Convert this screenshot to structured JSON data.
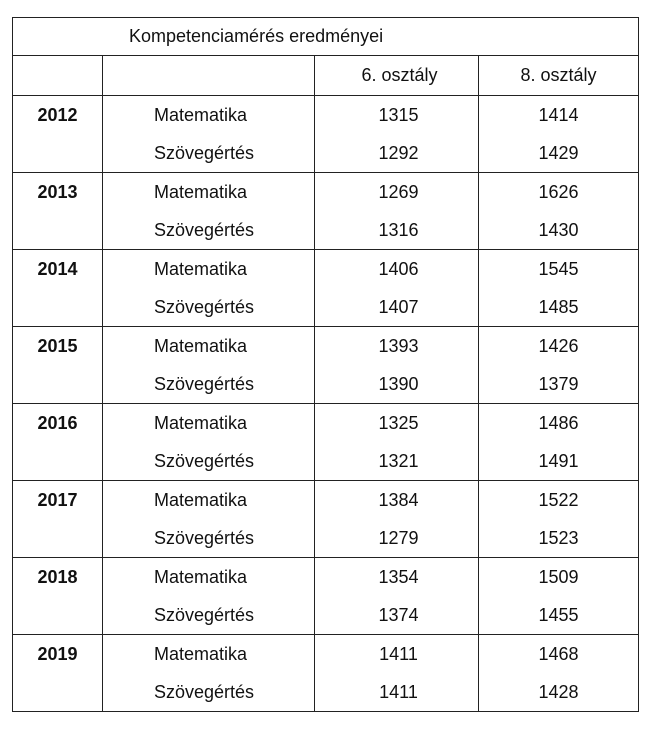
{
  "title": "Kompetenciamérés eredményei",
  "headers": {
    "year": "",
    "subject": "",
    "grade6": "6. osztály",
    "grade8": "8. osztály"
  },
  "rows": [
    {
      "year": "2012",
      "subject": "Matematika",
      "grade6": "1315",
      "grade8": "1414"
    },
    {
      "year": "",
      "subject": "Szövegértés",
      "grade6": "1292",
      "grade8": "1429"
    },
    {
      "year": "2013",
      "subject": "Matematika",
      "grade6": "1269",
      "grade8": "1626"
    },
    {
      "year": "",
      "subject": "Szövegértés",
      "grade6": "1316",
      "grade8": "1430"
    },
    {
      "year": "2014",
      "subject": "Matematika",
      "grade6": "1406",
      "grade8": "1545"
    },
    {
      "year": "",
      "subject": "Szövegértés",
      "grade6": "1407",
      "grade8": "1485"
    },
    {
      "year": "2015",
      "subject": "Matematika",
      "grade6": "1393",
      "grade8": "1426"
    },
    {
      "year": "",
      "subject": "Szövegértés",
      "grade6": "1390",
      "grade8": "1379"
    },
    {
      "year": "2016",
      "subject": "Matematika",
      "grade6": "1325",
      "grade8": "1486"
    },
    {
      "year": "",
      "subject": "Szövegértés",
      "grade6": "1321",
      "grade8": "1491"
    },
    {
      "year": "2017",
      "subject": "Matematika",
      "grade6": "1384",
      "grade8": "1522"
    },
    {
      "year": "",
      "subject": "Szövegértés",
      "grade6": "1279",
      "grade8": "1523"
    },
    {
      "year": "2018",
      "subject": "Matematika",
      "grade6": "1354",
      "grade8": "1509"
    },
    {
      "year": "",
      "subject": "Szövegértés",
      "grade6": "1374",
      "grade8": "1455"
    },
    {
      "year": "2019",
      "subject": "Matematika",
      "grade6": "1411",
      "grade8": "1468"
    },
    {
      "year": "",
      "subject": "Szövegértés",
      "grade6": "1411",
      "grade8": "1428"
    }
  ]
}
